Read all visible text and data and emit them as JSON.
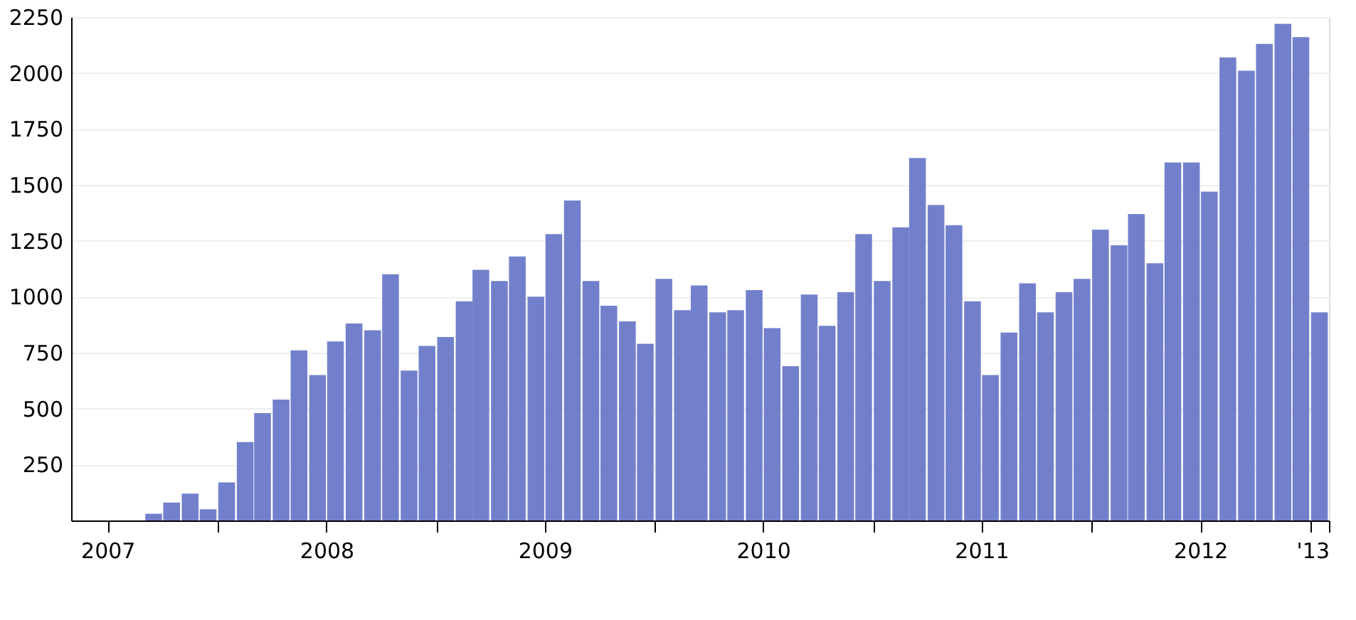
{
  "chart_data": {
    "type": "bar",
    "x": [
      "2007-05-16",
      "2007-06-16",
      "2007-07-16",
      "2007-08-16",
      "2007-09-16",
      "2007-10-16",
      "2007-11-16",
      "2007-12-16",
      "2008-01-16",
      "2008-02-16",
      "2008-03-16",
      "2008-04-16",
      "2008-05-16",
      "2008-06-16",
      "2008-07-16",
      "2008-08-16",
      "2008-09-16",
      "2008-10-16",
      "2008-11-16",
      "2008-12-16",
      "2009-01-16",
      "2009-02-16",
      "2009-03-16",
      "2009-04-16",
      "2009-05-16",
      "2009-06-16",
      "2009-07-16",
      "2009-08-16",
      "2009-09-16",
      "2009-10-16",
      "2009-11-16",
      "2009-12-16",
      "2010-01-16",
      "2010-02-16",
      "2010-03-16",
      "2010-04-16",
      "2010-05-16",
      "2010-06-16",
      "2010-07-16",
      "2010-08-16",
      "2010-09-16",
      "2010-10-16",
      "2010-11-16",
      "2010-12-16",
      "2011-01-16",
      "2011-02-16",
      "2011-03-16",
      "2011-04-16",
      "2011-05-16",
      "2011-06-16",
      "2011-07-16",
      "2011-08-16",
      "2011-09-16",
      "2011-10-16",
      "2011-11-16",
      "2011-12-16",
      "2012-01-16",
      "2012-02-16",
      "2012-03-16",
      "2012-04-16",
      "2012-05-16",
      "2012-06-16",
      "2012-07-16",
      "2012-08-16",
      "2012-09-16",
      "2012-10-16",
      "2012-11-16",
      "2012-12-16",
      "2013-01-16"
    ],
    "values": [
      0,
      0,
      0,
      0,
      30,
      80,
      120,
      50,
      170,
      350,
      480,
      540,
      760,
      650,
      800,
      880,
      850,
      1100,
      670,
      780,
      820,
      980,
      1120,
      1070,
      1180,
      1000,
      1280,
      1430,
      1070,
      960,
      890,
      790,
      1080,
      940,
      1050,
      930,
      940,
      1030,
      860,
      690,
      1010,
      870,
      1020,
      1280,
      1070,
      1310,
      1620,
      1410,
      1320,
      980,
      650,
      840,
      1060,
      930,
      1020,
      1080,
      1300,
      1230,
      1370,
      1150,
      1600,
      1600,
      1470,
      2070,
      2010,
      2130,
      2220,
      2160,
      930
    ],
    "color": "#7280cc",
    "xlim": [
      "2007-05",
      "2013-02"
    ],
    "xticks": [
      {
        "value": "2007-07",
        "label": "2007"
      },
      {
        "value": "2008-01",
        "label": null
      },
      {
        "value": "2008-07",
        "label": "2008"
      },
      {
        "value": "2009-01",
        "label": null
      },
      {
        "value": "2009-07",
        "label": "2009"
      },
      {
        "value": "2010-01",
        "label": null
      },
      {
        "value": "2010-07",
        "label": "2010"
      },
      {
        "value": "2011-01",
        "label": null
      },
      {
        "value": "2011-07",
        "label": "2011"
      },
      {
        "value": "2012-01",
        "label": null
      },
      {
        "value": "2012-07",
        "label": "2012"
      },
      {
        "value": "2013-01",
        "label": null
      },
      {
        "value": "2013-02",
        "label": "'13"
      }
    ],
    "ylim": [
      0,
      2250
    ],
    "yticks": [
      250,
      500,
      750,
      1000,
      1250,
      1500,
      1750,
      2000,
      2250
    ],
    "grid": "y"
  }
}
